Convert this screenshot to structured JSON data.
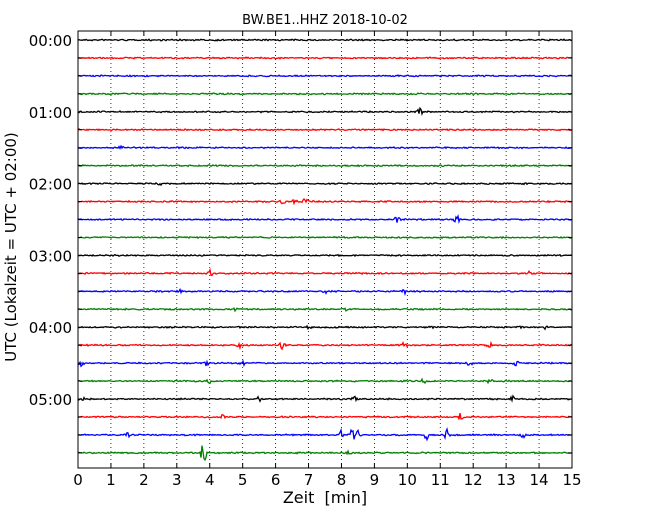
{
  "chart_data": {
    "type": "line",
    "title": "BW.BE1..HHZ 2018-10-02",
    "xlabel": "Zeit  [min]",
    "ylabel": "UTC (Lokalzeit = UTC + 02:00)",
    "xlim": [
      0,
      15
    ],
    "x_ticks": [
      "0",
      "1",
      "2",
      "3",
      "4",
      "5",
      "6",
      "7",
      "8",
      "9",
      "10",
      "11",
      "12",
      "13",
      "14",
      "15"
    ],
    "y_tick_labels": [
      "00:00",
      "01:00",
      "02:00",
      "03:00",
      "04:00",
      "05:00"
    ],
    "grid": "vertical dotted",
    "trace_colors": [
      "#000000",
      "#ff0000",
      "#0000ff",
      "#008000"
    ],
    "traces": [
      {
        "start": "00:00",
        "events": []
      },
      {
        "start": "00:15",
        "events": []
      },
      {
        "start": "00:30",
        "events": []
      },
      {
        "start": "00:45",
        "events": []
      },
      {
        "start": "01:00",
        "events": [
          [
            10.4,
            0.45
          ]
        ]
      },
      {
        "start": "01:15",
        "events": []
      },
      {
        "start": "01:30",
        "events": [
          [
            1.3,
            0.15
          ]
        ]
      },
      {
        "start": "01:45",
        "events": []
      },
      {
        "start": "02:00",
        "events": [
          [
            2.5,
            0.15
          ]
        ]
      },
      {
        "start": "02:15",
        "events": [
          [
            6.2,
            0.35
          ],
          [
            6.6,
            0.45
          ],
          [
            6.9,
            0.4
          ]
        ]
      },
      {
        "start": "02:30",
        "events": [
          [
            9.7,
            0.45
          ],
          [
            11.5,
            0.45
          ]
        ]
      },
      {
        "start": "02:45",
        "events": []
      },
      {
        "start": "03:00",
        "events": []
      },
      {
        "start": "03:15",
        "events": [
          [
            4.0,
            0.45
          ],
          [
            13.7,
            0.2
          ]
        ]
      },
      {
        "start": "03:30",
        "events": [
          [
            3.1,
            0.2
          ],
          [
            7.5,
            0.2
          ],
          [
            9.9,
            0.35
          ]
        ]
      },
      {
        "start": "03:45",
        "events": [
          [
            4.8,
            0.2
          ],
          [
            8.1,
            0.15
          ]
        ]
      },
      {
        "start": "04:00",
        "events": [
          [
            7.0,
            0.25
          ],
          [
            10.7,
            0.2
          ],
          [
            13.4,
            0.3
          ],
          [
            14.2,
            0.25
          ]
        ]
      },
      {
        "start": "04:15",
        "events": [
          [
            4.9,
            0.4
          ],
          [
            6.2,
            0.4
          ],
          [
            9.9,
            0.3
          ],
          [
            12.5,
            0.35
          ]
        ]
      },
      {
        "start": "04:30",
        "events": [
          [
            0.1,
            0.35
          ],
          [
            3.9,
            0.3
          ],
          [
            5.0,
            0.35
          ],
          [
            11.9,
            0.3
          ],
          [
            13.3,
            0.35
          ]
        ]
      },
      {
        "start": "04:45",
        "events": [
          [
            4.0,
            0.2
          ],
          [
            10.5,
            0.4
          ],
          [
            12.5,
            0.25
          ]
        ]
      },
      {
        "start": "05:00",
        "events": [
          [
            0.1,
            0.45
          ],
          [
            5.5,
            0.3
          ],
          [
            8.4,
            0.35
          ],
          [
            13.2,
            0.3
          ]
        ]
      },
      {
        "start": "05:15",
        "events": [
          [
            3.9,
            0.25
          ],
          [
            4.4,
            0.25
          ],
          [
            11.6,
            0.45
          ]
        ]
      },
      {
        "start": "05:30",
        "events": [
          [
            1.5,
            0.3
          ],
          [
            8.0,
            0.55
          ],
          [
            8.3,
            1.4
          ],
          [
            8.5,
            0.5
          ],
          [
            10.6,
            0.7
          ],
          [
            11.2,
            0.7
          ],
          [
            13.5,
            0.3
          ]
        ]
      },
      {
        "start": "05:45",
        "events": [
          [
            3.8,
            1.6
          ],
          [
            8.2,
            0.15
          ]
        ]
      }
    ]
  }
}
